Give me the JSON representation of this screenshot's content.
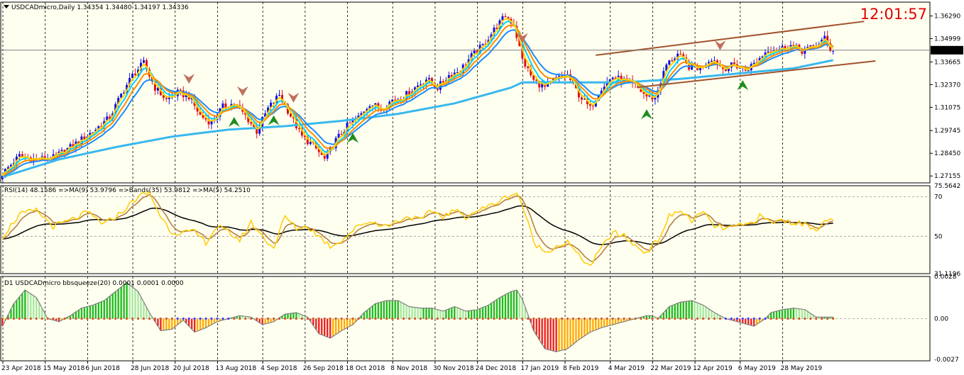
{
  "window": {
    "title": "USDCADmicro,Daily  1.34354 1.34480 1.34197 1.34336",
    "clock": "12:01:57"
  },
  "colors": {
    "background": "#fffff0",
    "bull_candle": "#1010e0",
    "bear_candle": "#e01010",
    "ma_fast": "#ffd400",
    "ma_mid": "#ff8c00",
    "ma_cyan": "#00d4ff",
    "ma_blue": "#1a8cff",
    "ma_slow": "#38b8ee",
    "channel": "#a0522d",
    "rsi": "#ffcc00",
    "rsi_ma": "#b07a3a",
    "rsi_bands": "#000000",
    "squeeze_pos": "#22bb22",
    "squeeze_neg": "#ee2222",
    "squeeze_fade_pos": "#a8e8a0",
    "squeeze_fade_neg": "#ffaa00",
    "up_arrow": "#1e8c1e",
    "down_arrow": "#c07060"
  },
  "chart_data": [
    {
      "type": "candlestick",
      "title": "USDCADmicro,Daily  1.34354 1.34480 1.34197 1.34336",
      "symbol": "USDCADmicro",
      "timeframe": "Daily",
      "ohlc_last": {
        "open": 1.34354,
        "high": 1.3448,
        "low": 1.34197,
        "close": 1.34336
      },
      "current_price_label": "1.34336",
      "ylim": [
        1.2676,
        1.3708
      ],
      "y_ticks": [
        "1.36290",
        "1.34999",
        "1.33665",
        "1.32370",
        "1.31075",
        "1.29745",
        "1.28450",
        "1.27155"
      ],
      "x_ticks": [
        "23 Apr 2018",
        "15 May 2018",
        "6 Jun 2018",
        "28 Jun 2018",
        "20 Jul 2018",
        "13 Aug 2018",
        "4 Sep 2018",
        "26 Sep 2018",
        "18 Oct 2018",
        "8 Nov 2018",
        "30 Nov 2018",
        "24 Dec 2018",
        "17 Jan 2019",
        "8 Feb 2019",
        "4 Mar 2019",
        "22 Mar 2019",
        "12 Apr 2019",
        "6 May 2019",
        "28 May 2019"
      ],
      "grid": "vertical dashed at date ticks",
      "close_anchors": [
        [
          0,
          1.273
        ],
        [
          6,
          1.283
        ],
        [
          12,
          1.281
        ],
        [
          18,
          1.282
        ],
        [
          25,
          1.289
        ],
        [
          32,
          1.297
        ],
        [
          38,
          1.305
        ],
        [
          42,
          1.318
        ],
        [
          46,
          1.329
        ],
        [
          50,
          1.336
        ],
        [
          54,
          1.322
        ],
        [
          58,
          1.315
        ],
        [
          62,
          1.319
        ],
        [
          66,
          1.317
        ],
        [
          70,
          1.306
        ],
        [
          74,
          1.302
        ],
        [
          78,
          1.311
        ],
        [
          82,
          1.313
        ],
        [
          86,
          1.306
        ],
        [
          90,
          1.297
        ],
        [
          94,
          1.31
        ],
        [
          98,
          1.318
        ],
        [
          102,
          1.306
        ],
        [
          106,
          1.294
        ],
        [
          110,
          1.289
        ],
        [
          114,
          1.281
        ],
        [
          118,
          1.292
        ],
        [
          122,
          1.3
        ],
        [
          126,
          1.305
        ],
        [
          130,
          1.313
        ],
        [
          134,
          1.31
        ],
        [
          138,
          1.315
        ],
        [
          142,
          1.317
        ],
        [
          146,
          1.322
        ],
        [
          150,
          1.327
        ],
        [
          154,
          1.322
        ],
        [
          158,
          1.329
        ],
        [
          162,
          1.332
        ],
        [
          166,
          1.34
        ],
        [
          170,
          1.346
        ],
        [
          174,
          1.355
        ],
        [
          178,
          1.363
        ],
        [
          181,
          1.358
        ],
        [
          184,
          1.338
        ],
        [
          188,
          1.326
        ],
        [
          192,
          1.322
        ],
        [
          196,
          1.327
        ],
        [
          200,
          1.329
        ],
        [
          204,
          1.318
        ],
        [
          208,
          1.31
        ],
        [
          212,
          1.322
        ],
        [
          216,
          1.328
        ],
        [
          220,
          1.326
        ],
        [
          224,
          1.323
        ],
        [
          228,
          1.317
        ],
        [
          231,
          1.316
        ],
        [
          235,
          1.335
        ],
        [
          239,
          1.341
        ],
        [
          243,
          1.334
        ],
        [
          247,
          1.333
        ],
        [
          251,
          1.339
        ],
        [
          255,
          1.333
        ],
        [
          259,
          1.335
        ],
        [
          263,
          1.332
        ],
        [
          267,
          1.337
        ],
        [
          271,
          1.344
        ],
        [
          275,
          1.344
        ],
        [
          279,
          1.346
        ],
        [
          283,
          1.343
        ],
        [
          287,
          1.345
        ],
        [
          291,
          1.35
        ],
        [
          293,
          1.344
        ]
      ],
      "channel_upper": [
        [
          210,
          1.3405
        ],
        [
          305,
          1.3598
        ]
      ],
      "channel_lower": [
        [
          225,
          1.3222
        ],
        [
          309,
          1.3372
        ]
      ],
      "moving_average_anchors": [
        [
          0,
          1.271
        ],
        [
          20,
          1.281
        ],
        [
          40,
          1.288
        ],
        [
          60,
          1.294
        ],
        [
          80,
          1.298
        ],
        [
          100,
          1.3
        ],
        [
          120,
          1.303
        ],
        [
          140,
          1.307
        ],
        [
          160,
          1.313
        ],
        [
          180,
          1.322
        ],
        [
          184,
          1.325
        ],
        [
          200,
          1.325
        ],
        [
          220,
          1.325
        ],
        [
          240,
          1.327
        ],
        [
          260,
          1.33
        ],
        [
          280,
          1.333
        ],
        [
          295,
          1.338
        ]
      ],
      "up_arrows_at_bar": [
        82,
        96,
        124,
        228,
        262
      ],
      "down_arrows_at_bar": [
        66,
        85,
        103,
        184,
        254
      ]
    },
    {
      "type": "line",
      "title": "RSI(14) 48.1586  =>MA(9) 53.9796  =>Bands(35) 53.9812  =>MA(5) 54.2510",
      "series": [
        {
          "name": "RSI(14)",
          "value": 48.1586,
          "anchors": [
            [
              0,
              50
            ],
            [
              6,
              61
            ],
            [
              12,
              63
            ],
            [
              18,
              55
            ],
            [
              24,
              58
            ],
            [
              30,
              62
            ],
            [
              36,
              56
            ],
            [
              42,
              62
            ],
            [
              48,
              70
            ],
            [
              52,
              72
            ],
            [
              56,
              60
            ],
            [
              60,
              52
            ],
            [
              64,
              52
            ],
            [
              68,
              52
            ],
            [
              72,
              47
            ],
            [
              76,
              55
            ],
            [
              80,
              52
            ],
            [
              84,
              48
            ],
            [
              88,
              57
            ],
            [
              92,
              50
            ],
            [
              96,
              44
            ],
            [
              100,
              60
            ],
            [
              104,
              54
            ],
            [
              108,
              55
            ],
            [
              112,
              50
            ],
            [
              116,
              45
            ],
            [
              120,
              48
            ],
            [
              124,
              53
            ],
            [
              128,
              57
            ],
            [
              132,
              57
            ],
            [
              136,
              55
            ],
            [
              140,
              58
            ],
            [
              144,
              60
            ],
            [
              148,
              58
            ],
            [
              152,
              63
            ],
            [
              156,
              60
            ],
            [
              160,
              63
            ],
            [
              164,
              60
            ],
            [
              168,
              63
            ],
            [
              172,
              65
            ],
            [
              176,
              68
            ],
            [
              180,
              71
            ],
            [
              182,
              72
            ],
            [
              184,
              66
            ],
            [
              188,
              47
            ],
            [
              192,
              42
            ],
            [
              196,
              45
            ],
            [
              200,
              47
            ],
            [
              204,
              40
            ],
            [
              208,
              35
            ],
            [
              212,
              44
            ],
            [
              216,
              52
            ],
            [
              220,
              50
            ],
            [
              224,
              45
            ],
            [
              228,
              42
            ],
            [
              232,
              48
            ],
            [
              236,
              60
            ],
            [
              240,
              63
            ],
            [
              244,
              58
            ],
            [
              248,
              62
            ],
            [
              252,
              55
            ],
            [
              256,
              54
            ],
            [
              260,
              55
            ],
            [
              264,
              56
            ],
            [
              268,
              60
            ],
            [
              272,
              57
            ],
            [
              276,
              58
            ],
            [
              280,
              57
            ],
            [
              284,
              56
            ],
            [
              288,
              54
            ],
            [
              292,
              58
            ],
            [
              294,
              57
            ]
          ]
        },
        {
          "name": "MA(9)",
          "value": 53.9796
        },
        {
          "name": "Bands(35)",
          "value": 53.9812
        },
        {
          "name": "MA(5)",
          "value": 54.251
        }
      ],
      "ylim": [
        31.1196,
        75.5642
      ],
      "y_ticks": [
        "75.5642",
        "70",
        "50",
        "31.1196"
      ],
      "levels": [
        70,
        50
      ]
    },
    {
      "type": "bar",
      "title": "D1 USDCADmicro bbsqueeze(20) 0.0001 0.0001 0.0000",
      "ylim": [
        -0.0028,
        0.0028
      ],
      "y_ticks": [
        "0.0028",
        "0.00",
        "-0.0027"
      ],
      "value_anchors": [
        [
          0,
          -0.0005
        ],
        [
          4,
          0.001
        ],
        [
          8,
          0.0019
        ],
        [
          12,
          0.0014
        ],
        [
          16,
          0.0
        ],
        [
          20,
          -0.0002
        ],
        [
          24,
          0.0002
        ],
        [
          28,
          0.0007
        ],
        [
          32,
          0.0009
        ],
        [
          36,
          0.0012
        ],
        [
          40,
          0.0018
        ],
        [
          44,
          0.0024
        ],
        [
          48,
          0.0018
        ],
        [
          52,
          0.0004
        ],
        [
          56,
          -0.0008
        ],
        [
          60,
          -0.0007
        ],
        [
          64,
          -0.0001
        ],
        [
          68,
          -0.0009
        ],
        [
          72,
          -0.0006
        ],
        [
          76,
          -0.0002
        ],
        [
          80,
          0.0
        ],
        [
          84,
          0.0002
        ],
        [
          88,
          0.0001
        ],
        [
          92,
          -0.0004
        ],
        [
          96,
          -0.0002
        ],
        [
          100,
          0.0003
        ],
        [
          104,
          0.0004
        ],
        [
          108,
          0.0001
        ],
        [
          112,
          -0.001
        ],
        [
          116,
          -0.0013
        ],
        [
          120,
          -0.0008
        ],
        [
          124,
          -0.0004
        ],
        [
          128,
          0.0004
        ],
        [
          132,
          0.001
        ],
        [
          136,
          0.0012
        ],
        [
          140,
          0.0012
        ],
        [
          144,
          0.0008
        ],
        [
          148,
          0.0007
        ],
        [
          152,
          0.0007
        ],
        [
          156,
          0.0005
        ],
        [
          160,
          0.0008
        ],
        [
          164,
          0.0005
        ],
        [
          168,
          0.0006
        ],
        [
          172,
          0.0009
        ],
        [
          176,
          0.0014
        ],
        [
          180,
          0.0018
        ],
        [
          182,
          0.0019
        ],
        [
          184,
          0.0013
        ],
        [
          188,
          -0.0008
        ],
        [
          192,
          -0.002
        ],
        [
          196,
          -0.0022
        ],
        [
          200,
          -0.002
        ],
        [
          204,
          -0.0014
        ],
        [
          208,
          -0.0009
        ],
        [
          212,
          -0.0006
        ],
        [
          216,
          -0.0004
        ],
        [
          220,
          -0.0002
        ],
        [
          224,
          0.0
        ],
        [
          228,
          0.0002
        ],
        [
          230,
          0.0002
        ],
        [
          232,
          0.0
        ],
        [
          236,
          0.0008
        ],
        [
          240,
          0.0011
        ],
        [
          244,
          0.0012
        ],
        [
          248,
          0.0009
        ],
        [
          252,
          0.0004
        ],
        [
          256,
          0.0
        ],
        [
          260,
          -0.0002
        ],
        [
          264,
          -0.0004
        ],
        [
          266,
          -0.0005
        ],
        [
          270,
          0.0
        ],
        [
          272,
          0.0004
        ],
        [
          276,
          0.0006
        ],
        [
          280,
          0.0007
        ],
        [
          284,
          0.0006
        ],
        [
          288,
          0.0001
        ],
        [
          292,
          0.0001
        ],
        [
          294,
          0.0001
        ]
      ]
    }
  ]
}
